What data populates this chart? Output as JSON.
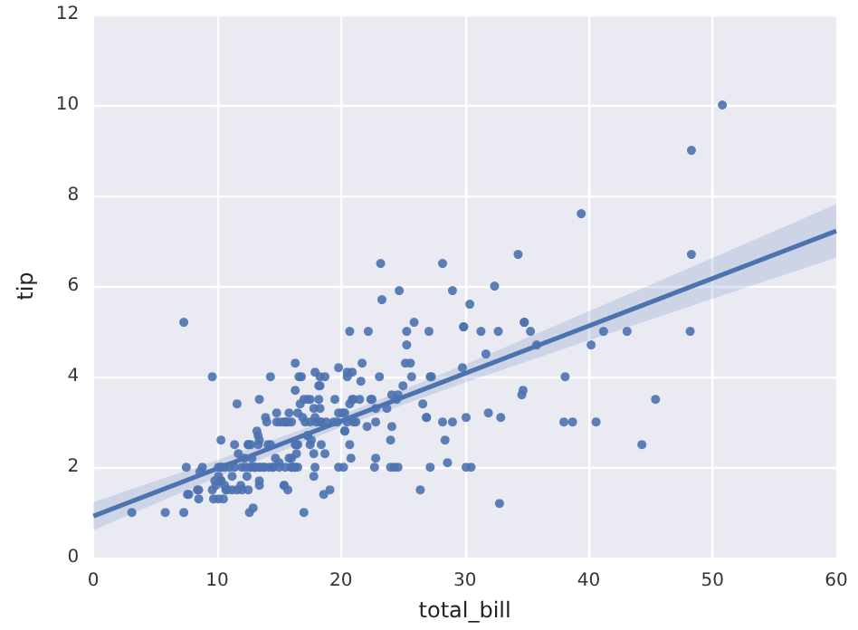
{
  "chart_data": {
    "type": "scatter",
    "xlabel": "total_bill",
    "ylabel": "tip",
    "xlim": [
      0,
      60
    ],
    "xticks": [
      0,
      10,
      20,
      30,
      40,
      50,
      60
    ],
    "ylim": [
      0,
      12
    ],
    "yticks": [
      0,
      2,
      4,
      6,
      8,
      10,
      12
    ],
    "grid": true,
    "marker": "circle",
    "series": [
      {
        "type": "scatter",
        "color": "#4c72b0",
        "x": [
          17.0,
          10.3,
          21.0,
          23.7,
          24.6,
          25.3,
          8.8,
          26.9,
          15.0,
          14.8,
          10.3,
          35.3,
          15.4,
          18.4,
          14.8,
          21.6,
          10.3,
          16.3,
          17.0,
          20.7,
          17.9,
          20.3,
          15.8,
          39.4,
          19.8,
          17.8,
          13.4,
          12.7,
          21.7,
          19.7,
          9.6,
          18.4,
          15.1,
          20.7,
          17.8,
          24.1,
          16.3,
          16.9,
          18.7,
          31.3,
          16.0,
          17.5,
          13.9,
          9.7,
          30.4,
          18.3,
          22.2,
          32.4,
          28.6,
          18.0,
          12.5,
          10.3,
          34.8,
          9.9,
          25.6,
          19.5,
          38.0,
          26.4,
          11.2,
          48.3,
          20.3,
          13.8,
          11.0,
          18.3,
          17.6,
          20.1,
          16.5,
          3.1,
          20.2,
          15.0,
          12.0,
          17.1,
          26.9,
          25.3,
          14.7,
          10.5,
          17.9,
          27.2,
          22.8,
          17.3,
          19.4,
          16.7,
          10.1,
          32.7,
          16.0,
          34.8,
          13.0,
          18.3,
          24.7,
          21.2,
          29.0,
          22.5,
          5.8,
          16.3,
          22.8,
          40.2,
          27.3,
          12.0,
          21.0,
          12.5,
          11.4,
          15.4,
          44.3,
          22.4,
          20.9,
          15.4,
          20.5,
          25.2,
          18.2,
          14.3,
          14.0,
          7.3,
          38.1,
          24.0,
          25.7,
          17.3,
          29.9,
          10.7,
          12.4,
          24.1,
          11.7,
          13.4,
          14.3,
          16.0,
          12.5,
          29.8,
          8.5,
          14.5,
          11.4,
          22.8,
          19.1,
          20.3,
          11.2,
          12.3,
          18.3,
          8.5,
          10.3,
          14.2,
          16.0,
          13.2,
          17.5,
          34.3,
          41.2,
          27.1,
          16.4,
          8.4,
          18.6,
          11.9,
          9.8,
          7.5,
          14.1,
          13.1,
          17.3,
          24.6,
          19.8,
          29.9,
          48.2,
          25.0,
          13.4,
          16.5,
          21.5,
          12.7,
          16.2,
          13.8,
          17.5,
          24.5,
          20.8,
          31.7,
          10.6,
          10.6,
          50.8,
          15.8,
          7.3,
          31.9,
          16.8,
          32.9,
          17.9,
          14.5,
          9.6,
          34.6,
          34.7,
          23.3,
          45.4,
          23.2,
          40.6,
          20.7,
          20.9,
          30.5,
          18.2,
          23.1,
          15.7,
          19.8,
          28.4,
          15.5,
          16.6,
          7.6,
          10.3,
          43.1,
          13.0,
          13.5,
          18.7,
          12.7,
          13.0,
          16.4,
          20.5,
          16.5,
          26.6,
          38.7,
          24.3,
          12.8,
          30.1,
          25.9,
          48.3,
          13.3,
          28.2,
          12.9,
          28.2,
          11.6,
          7.7,
          30.1,
          12.2,
          13.4,
          8.6,
          16.0,
          13.4,
          16.3,
          10.1,
          20.5,
          13.3,
          22.1,
          24.0,
          15.7,
          11.6,
          10.8,
          15.5,
          10.1,
          12.6,
          32.8,
          35.8,
          29.0,
          27.2,
          22.7,
          17.8,
          18.8
        ],
        "values": [
          1.0,
          1.7,
          3.5,
          3.3,
          3.6,
          4.7,
          2.0,
          3.1,
          2.0,
          3.2,
          1.7,
          5.0,
          1.6,
          3.0,
          3.0,
          3.9,
          1.7,
          3.7,
          3.5,
          3.4,
          4.1,
          2.8,
          2.2,
          7.6,
          3.2,
          2.3,
          2.0,
          2.0,
          4.3,
          3.0,
          1.5,
          2.5,
          3.0,
          2.5,
          3.3,
          3.6,
          2.0,
          3.1,
          2.3,
          5.0,
          2.2,
          2.5,
          3.1,
          1.3,
          5.6,
          3.0,
          5.0,
          6.0,
          2.1,
          3.0,
          2.5,
          2.6,
          5.2,
          1.6,
          4.3,
          3.5,
          3.0,
          1.5,
          1.8,
          6.7,
          3.2,
          2.0,
          2.0,
          3.8,
          2.6,
          3.2,
          2.5,
          1.0,
          2.0,
          2.1,
          2.0,
          3.0,
          3.1,
          5.0,
          2.2,
          1.3,
          3.1,
          4.0,
          3.0,
          2.7,
          3.0,
          3.4,
          1.8,
          5.0,
          2.0,
          5.2,
          2.0,
          4.0,
          5.9,
          3.0,
          3.0,
          3.5,
          1.0,
          4.3,
          3.3,
          4.7,
          4.0,
          1.5,
          3.0,
          1.5,
          2.5,
          3.0,
          2.5,
          3.5,
          4.1,
          1.6,
          4.1,
          4.3,
          3.8,
          4.0,
          3.0,
          1.0,
          4.0,
          2.6,
          4.0,
          3.5,
          5.1,
          1.5,
          1.8,
          2.9,
          2.3,
          1.7,
          2.5,
          2.0,
          2.5,
          4.2,
          1.5,
          2.0,
          2.0,
          2.2,
          1.5,
          2.8,
          1.5,
          2.0,
          3.3,
          1.3,
          2.0,
          2.0,
          2.0,
          2.8,
          3.5,
          6.7,
          5.0,
          5.0,
          2.3,
          1.5,
          1.4,
          1.6,
          1.7,
          2.0,
          2.5,
          2.0,
          2.7,
          2.0,
          2.0,
          5.1,
          5.0,
          3.8,
          2.6,
          2.0,
          3.5,
          2.5,
          2.0,
          2.0,
          3.0,
          3.5,
          2.2,
          4.5,
          1.6,
          2.0,
          10.0,
          3.2,
          5.2,
          3.2,
          4.0,
          3.1,
          2.0,
          2.0,
          4.0,
          3.6,
          3.7,
          5.7,
          3.5,
          6.5,
          3.0,
          5.0,
          3.5,
          2.0,
          3.5,
          4.0,
          1.5,
          4.2,
          2.6,
          2.0,
          4.0,
          1.4,
          2.0,
          5.0,
          2.0,
          2.0,
          4.0,
          2.0,
          2.0,
          2.5,
          4.0,
          3.2,
          3.4,
          3.0,
          2.0,
          2.2,
          2.0,
          5.2,
          9.0,
          2.5,
          6.5,
          1.1,
          3.0,
          1.5,
          1.4,
          3.1,
          2.2,
          3.5,
          1.9,
          3.0,
          1.6,
          2.5,
          2.0,
          3.0,
          2.7,
          2.9,
          2.0,
          3.0,
          3.4,
          1.5,
          3.0,
          1.3,
          1.0,
          1.2,
          4.7,
          5.9,
          2.0,
          2.0,
          1.8,
          3.0
        ]
      },
      {
        "type": "line",
        "color": "#4c72b0",
        "line_style": "solid",
        "marker": "none",
        "x": [
          0,
          10,
          20,
          30,
          40,
          50,
          60
        ],
        "values": [
          0.92,
          1.97,
          3.02,
          4.07,
          5.12,
          6.17,
          7.22
        ],
        "lower": [
          0.61,
          1.78,
          2.89,
          3.87,
          4.8,
          5.72,
          6.63
        ],
        "upper": [
          1.23,
          2.16,
          3.15,
          4.27,
          5.44,
          6.62,
          7.81
        ]
      }
    ]
  }
}
